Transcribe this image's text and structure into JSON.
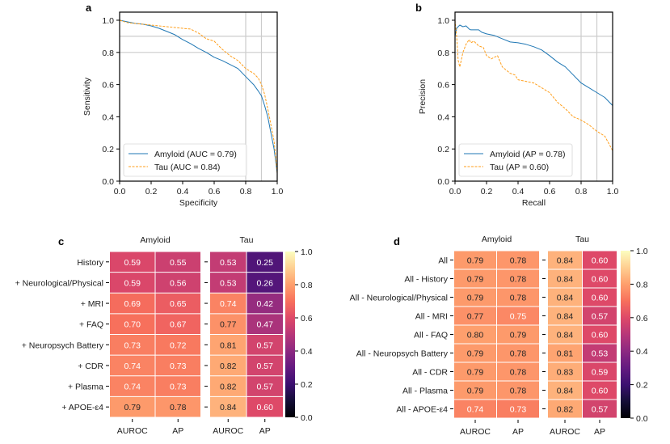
{
  "chart_data": [
    {
      "panel": "a",
      "type": "line",
      "xlabel": "Specificity",
      "ylabel": "Sensitivity",
      "xlim": [
        0.0,
        1.0
      ],
      "ylim": [
        0.0,
        1.0
      ],
      "xticks": [
        "0.0",
        "0.2",
        "0.4",
        "0.6",
        "0.8",
        "1.0"
      ],
      "yticks": [
        "0.0",
        "0.2",
        "0.4",
        "0.6",
        "0.8",
        "1.0"
      ],
      "reference_lines": {
        "x": [
          0.8,
          0.9
        ],
        "y": [
          0.8,
          0.9
        ]
      },
      "legend": "bottom-left",
      "series": [
        {
          "name": "Amyloid (AUC = 0.79)",
          "color": "#1f77b4",
          "style": "solid",
          "x": [
            0.0,
            0.05,
            0.1,
            0.15,
            0.2,
            0.25,
            0.3,
            0.35,
            0.4,
            0.45,
            0.5,
            0.55,
            0.6,
            0.65,
            0.7,
            0.75,
            0.8,
            0.85,
            0.88,
            0.9,
            0.92,
            0.94,
            0.96,
            0.98,
            1.0
          ],
          "y": [
            1.0,
            0.99,
            0.98,
            0.975,
            0.965,
            0.95,
            0.93,
            0.91,
            0.88,
            0.855,
            0.825,
            0.8,
            0.77,
            0.75,
            0.725,
            0.7,
            0.65,
            0.6,
            0.56,
            0.53,
            0.47,
            0.4,
            0.3,
            0.2,
            0.05
          ]
        },
        {
          "name": "Tau (AUC = 0.84)",
          "color": "#ff9f1c",
          "style": "dashed",
          "x": [
            0.0,
            0.05,
            0.1,
            0.15,
            0.2,
            0.25,
            0.3,
            0.35,
            0.4,
            0.45,
            0.5,
            0.55,
            0.6,
            0.65,
            0.7,
            0.75,
            0.8,
            0.85,
            0.88,
            0.9,
            0.92,
            0.94,
            0.96,
            0.98,
            1.0
          ],
          "y": [
            1.0,
            0.985,
            0.98,
            0.975,
            0.97,
            0.965,
            0.96,
            0.955,
            0.95,
            0.945,
            0.92,
            0.885,
            0.87,
            0.82,
            0.78,
            0.75,
            0.7,
            0.67,
            0.64,
            0.6,
            0.54,
            0.45,
            0.35,
            0.25,
            0.05
          ]
        }
      ]
    },
    {
      "panel": "b",
      "type": "line",
      "xlabel": "Recall",
      "ylabel": "Precision",
      "xlim": [
        0.0,
        1.0
      ],
      "ylim": [
        0.0,
        1.0
      ],
      "xticks": [
        "0.0",
        "0.2",
        "0.4",
        "0.6",
        "0.8",
        "1.0"
      ],
      "yticks": [
        "0.0",
        "0.2",
        "0.4",
        "0.6",
        "0.8",
        "1.0"
      ],
      "reference_lines": {
        "x": [
          0.8,
          0.9
        ],
        "y": [
          0.8,
          0.9
        ]
      },
      "legend": "bottom-left",
      "series": [
        {
          "name": "Amyloid (AP = 0.78)",
          "color": "#1f77b4",
          "style": "solid",
          "x": [
            0.0,
            0.01,
            0.02,
            0.03,
            0.05,
            0.07,
            0.09,
            0.1,
            0.15,
            0.17,
            0.2,
            0.25,
            0.3,
            0.35,
            0.4,
            0.45,
            0.5,
            0.55,
            0.6,
            0.65,
            0.7,
            0.75,
            0.8,
            0.85,
            0.9,
            0.95,
            1.0
          ],
          "y": [
            0.9,
            0.95,
            0.96,
            0.97,
            0.96,
            0.965,
            0.945,
            0.94,
            0.94,
            0.925,
            0.915,
            0.905,
            0.885,
            0.865,
            0.86,
            0.85,
            0.835,
            0.815,
            0.78,
            0.74,
            0.71,
            0.66,
            0.61,
            0.58,
            0.55,
            0.52,
            0.47
          ]
        },
        {
          "name": "Tau (AP = 0.60)",
          "color": "#ff9f1c",
          "style": "dashed",
          "x": [
            0.0,
            0.01,
            0.02,
            0.03,
            0.05,
            0.07,
            0.09,
            0.1,
            0.12,
            0.15,
            0.18,
            0.2,
            0.23,
            0.27,
            0.3,
            0.35,
            0.38,
            0.4,
            0.45,
            0.5,
            0.55,
            0.6,
            0.65,
            0.7,
            0.75,
            0.8,
            0.85,
            0.9,
            0.95,
            1.0
          ],
          "y": [
            1.0,
            0.9,
            0.75,
            0.71,
            0.8,
            0.85,
            0.88,
            0.86,
            0.87,
            0.84,
            0.83,
            0.78,
            0.76,
            0.78,
            0.71,
            0.67,
            0.66,
            0.63,
            0.62,
            0.61,
            0.58,
            0.55,
            0.49,
            0.45,
            0.4,
            0.38,
            0.35,
            0.31,
            0.28,
            0.19
          ]
        }
      ]
    },
    {
      "panel": "c",
      "type": "heatmap",
      "group_titles": [
        "Amyloid",
        "Tau"
      ],
      "columns": [
        "AUROC",
        "AP",
        "AUROC",
        "AP"
      ],
      "rows": [
        "History",
        "+ Neurological/Physical",
        "+ MRI",
        "+ FAQ",
        "+ Neuropsych Battery",
        "+ CDR",
        "+ Plasma",
        "+ APOE-ε4"
      ],
      "values": [
        [
          0.59,
          0.55,
          0.53,
          0.25
        ],
        [
          0.59,
          0.56,
          0.53,
          0.26
        ],
        [
          0.69,
          0.65,
          0.74,
          0.42
        ],
        [
          0.7,
          0.67,
          0.77,
          0.47
        ],
        [
          0.73,
          0.72,
          0.81,
          0.57
        ],
        [
          0.74,
          0.73,
          0.82,
          0.57
        ],
        [
          0.74,
          0.73,
          0.82,
          0.57
        ],
        [
          0.79,
          0.78,
          0.84,
          0.6
        ]
      ],
      "colormap": "magma",
      "clim": [
        0.0,
        1.0
      ],
      "colorbar_ticks": [
        "0.0",
        "0.2",
        "0.4",
        "0.6",
        "0.8",
        "1.0"
      ]
    },
    {
      "panel": "d",
      "type": "heatmap",
      "group_titles": [
        "Amyloid",
        "Tau"
      ],
      "columns": [
        "AUROC",
        "AP",
        "AUROC",
        "AP"
      ],
      "rows": [
        "All",
        "All - History",
        "All - Neurological/Physical",
        "All - MRI",
        "All - FAQ",
        "All - Neuropsych Battery",
        "All - CDR",
        "All - Plasma",
        "All - APOE-ε4"
      ],
      "values": [
        [
          0.79,
          0.78,
          0.84,
          0.6
        ],
        [
          0.79,
          0.78,
          0.84,
          0.6
        ],
        [
          0.79,
          0.78,
          0.84,
          0.6
        ],
        [
          0.77,
          0.75,
          0.84,
          0.57
        ],
        [
          0.8,
          0.79,
          0.84,
          0.6
        ],
        [
          0.79,
          0.78,
          0.81,
          0.53
        ],
        [
          0.79,
          0.78,
          0.83,
          0.59
        ],
        [
          0.79,
          0.78,
          0.84,
          0.6
        ],
        [
          0.74,
          0.73,
          0.82,
          0.57
        ]
      ],
      "colormap": "magma",
      "clim": [
        0.0,
        1.0
      ],
      "colorbar_ticks": [
        "0.0",
        "0.2",
        "0.4",
        "0.6",
        "0.8",
        "1.0"
      ]
    }
  ]
}
